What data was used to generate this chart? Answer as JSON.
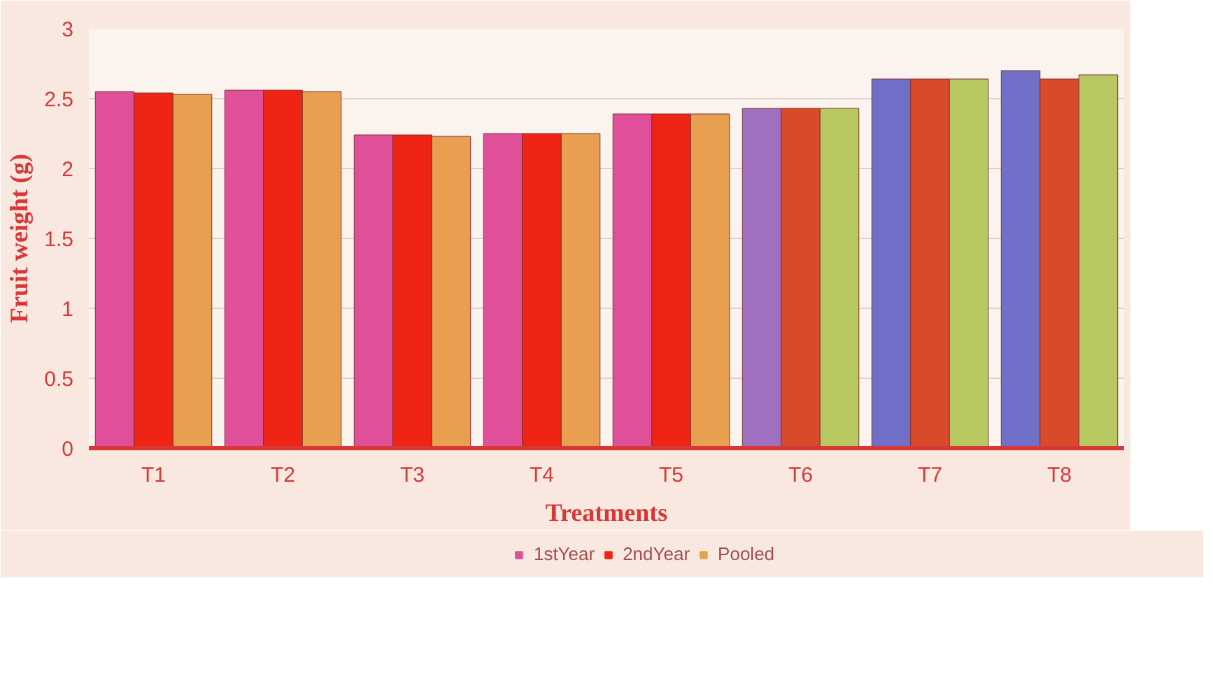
{
  "chart_data": {
    "type": "bar",
    "xlabel": "Treatments",
    "ylabel": "Fruit weight (g)",
    "categories": [
      "T1",
      "T2",
      "T3",
      "T4",
      "T5",
      "T6",
      "T7",
      "T8"
    ],
    "series": [
      {
        "name": "1stYear",
        "color": "#e0509a",
        "colors": [
          "#e0509a",
          "#e0509a",
          "#e0509a",
          "#e0509a",
          "#e0509a",
          "#a070c0",
          "#7070c8",
          "#7070c8"
        ],
        "values": [
          2.55,
          2.56,
          2.24,
          2.25,
          2.39,
          2.43,
          2.64,
          2.7
        ]
      },
      {
        "name": "2ndYear",
        "color": "#f02414",
        "colors": [
          "#f02414",
          "#f02414",
          "#f02414",
          "#f02414",
          "#f02414",
          "#d84a28",
          "#d84a28",
          "#d84a28"
        ],
        "values": [
          2.54,
          2.56,
          2.24,
          2.25,
          2.39,
          2.43,
          2.64,
          2.64
        ]
      },
      {
        "name": "Pooled",
        "color": "#e8a050",
        "colors": [
          "#e8a050",
          "#e8a050",
          "#e8a050",
          "#e8a050",
          "#e8a050",
          "#b8c860",
          "#b8c860",
          "#b8c860"
        ],
        "values": [
          2.53,
          2.55,
          2.23,
          2.25,
          2.39,
          2.43,
          2.64,
          2.67
        ]
      }
    ],
    "ylim": [
      0,
      3
    ],
    "yticks": [
      0,
      0.5,
      1,
      1.5,
      2,
      2.5,
      3
    ],
    "grid": "y",
    "legend": "bottom"
  }
}
